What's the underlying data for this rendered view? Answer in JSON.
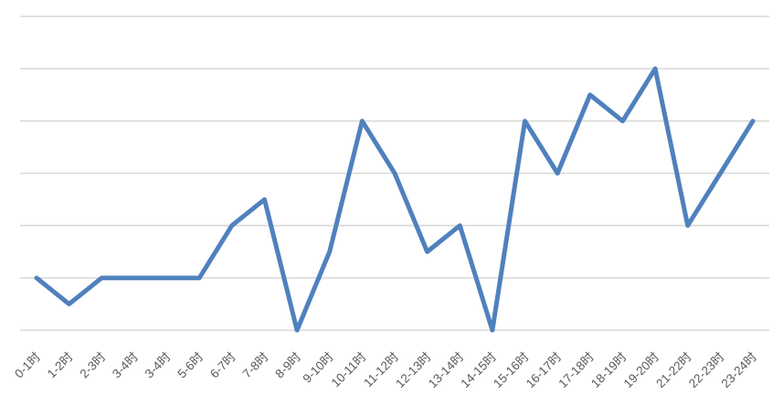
{
  "chart_data": {
    "type": "line",
    "title": "",
    "xlabel": "",
    "ylabel": "",
    "categories": [
      "0-1时",
      "1-2时",
      "2-3时",
      "3-4时",
      "3-4时",
      "5-6时",
      "6-7时",
      "7-8时",
      "8-9时",
      "9-10时",
      "10-11时",
      "11-12时",
      "12-13时",
      "13-14时",
      "14-15时",
      "15-16时",
      "16-17时",
      "17-18时",
      "18-19时",
      "19-20时",
      "21-22时",
      "22-23时",
      "23-24时"
    ],
    "values": [
      2,
      1,
      2,
      2,
      2,
      2,
      4,
      5,
      0,
      3,
      8,
      6,
      3,
      4,
      0,
      8,
      6,
      9,
      8,
      10,
      4,
      6,
      8
    ],
    "ylim": [
      0,
      12
    ],
    "y_gridline_step": 2,
    "y_axis_tick_labels_visible": false,
    "grid": true,
    "legend": "none",
    "x_label_rotation_deg": -45,
    "line_color": "#4F81BD",
    "line_width": 5,
    "gridline_color": "#D9D9D9",
    "label_color": "#595959",
    "label_font_size": 13.5,
    "background": "#FFFFFF"
  }
}
